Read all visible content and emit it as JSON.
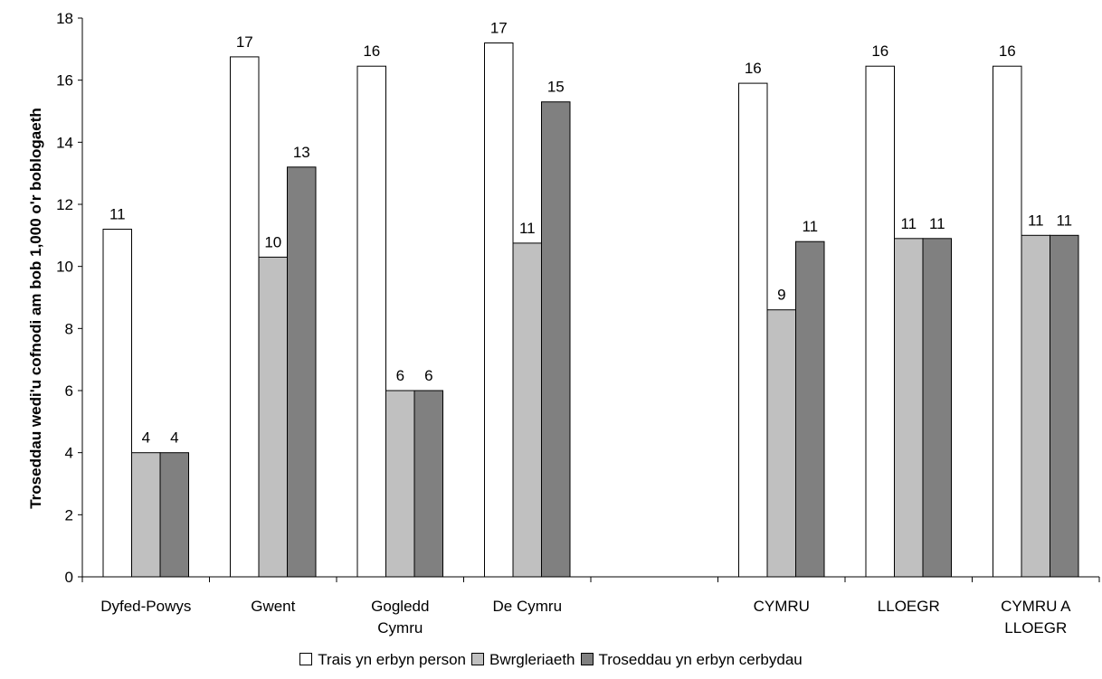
{
  "chart_data": {
    "type": "bar",
    "title": "",
    "ylabel": "Troseddau wedi'u cofnodi am bob 1,000 o'r boblogaeth",
    "xlabel": "",
    "ylim": [
      0,
      18
    ],
    "yticks": [
      0,
      2,
      4,
      6,
      8,
      10,
      12,
      14,
      16,
      18
    ],
    "grid": false,
    "legend_position": "bottom",
    "categories": [
      [
        "Dyfed-Powys"
      ],
      [
        "Gwent"
      ],
      [
        "Gogledd",
        "Cymru"
      ],
      [
        "De Cymru"
      ],
      [],
      [
        "CYMRU"
      ],
      [
        "LLOEGR"
      ],
      [
        "CYMRU A",
        "LLOEGR"
      ]
    ],
    "series": [
      {
        "name": "Trais yn erbyn person",
        "color": "#ffffff",
        "values": [
          11.2,
          16.75,
          16.45,
          17.2,
          null,
          15.9,
          16.45,
          16.45
        ],
        "labels": [
          "11",
          "17",
          "16",
          "17",
          "",
          "16",
          "16",
          "16"
        ]
      },
      {
        "name": "Bwrgleriaeth",
        "color": "#c0c0c0",
        "values": [
          4.0,
          10.3,
          6.0,
          10.75,
          null,
          8.6,
          10.9,
          11.0
        ],
        "labels": [
          "4",
          "10",
          "6",
          "11",
          "",
          "9",
          "11",
          "11"
        ]
      },
      {
        "name": "Troseddau yn erbyn cerbydau",
        "color": "#808080",
        "values": [
          4.0,
          13.2,
          6.0,
          15.3,
          null,
          10.8,
          10.9,
          11.0
        ],
        "labels": [
          "4",
          "13",
          "6",
          "15",
          "",
          "11",
          "11",
          "11"
        ]
      }
    ]
  }
}
